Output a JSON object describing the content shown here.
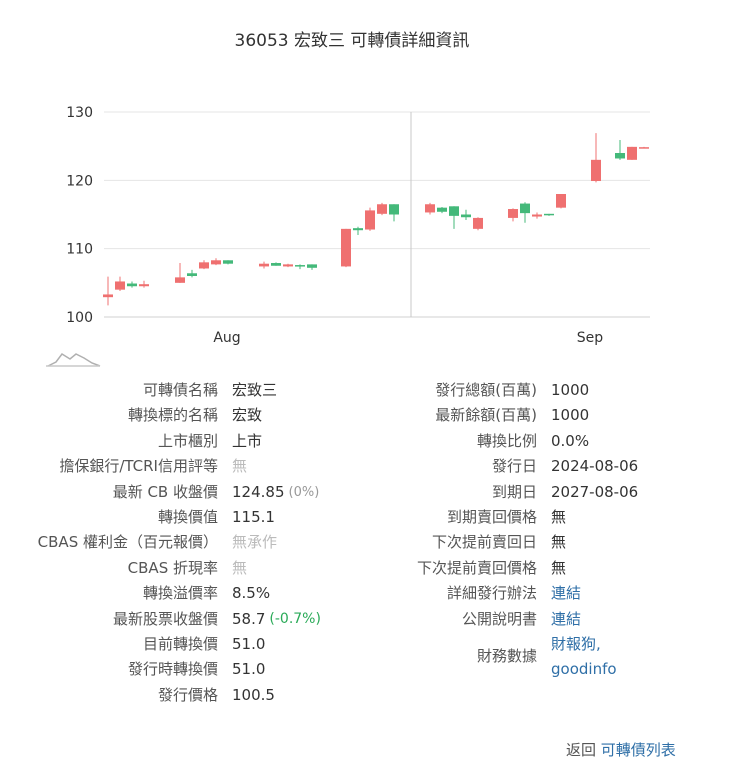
{
  "page": {
    "title": "36053 宏致三 可轉債詳細資訊"
  },
  "chart_data": {
    "type": "candlestick",
    "x_ticks": [
      "Aug",
      "Sep"
    ],
    "y_ticks": [
      100,
      110,
      120,
      130
    ],
    "ylim": [
      99,
      131
    ],
    "colors": {
      "up": "#ef7070",
      "down": "#44b97a",
      "grid": "#e4e4e4",
      "crosshair": "#c8c8c8"
    },
    "candles": [
      {
        "o": 102.9,
        "c": 103.3,
        "h": 105.9,
        "l": 101.7
      },
      {
        "o": 104.0,
        "c": 105.2,
        "h": 105.9,
        "l": 103.8
      },
      {
        "o": 104.9,
        "c": 104.5,
        "h": 105.2,
        "l": 104.3
      },
      {
        "o": 104.5,
        "c": 104.8,
        "h": 105.3,
        "l": 104.3
      },
      {
        "o": 105.0,
        "c": 105.8,
        "h": 107.9,
        "l": 105.0
      },
      {
        "o": 106.4,
        "c": 106.0,
        "h": 106.9,
        "l": 105.8
      },
      {
        "o": 107.1,
        "c": 108.0,
        "h": 108.3,
        "l": 107.0
      },
      {
        "o": 107.7,
        "c": 108.3,
        "h": 108.6,
        "l": 107.6
      },
      {
        "o": 108.3,
        "c": 107.8,
        "h": 108.3,
        "l": 107.7
      },
      {
        "o": 107.4,
        "c": 107.8,
        "h": 108.1,
        "l": 107.1
      },
      {
        "o": 107.9,
        "c": 107.5,
        "h": 108.0,
        "l": 107.5
      },
      {
        "o": 107.4,
        "c": 107.7,
        "h": 107.8,
        "l": 107.3
      },
      {
        "o": 107.6,
        "c": 107.4,
        "h": 107.7,
        "l": 107.0
      },
      {
        "o": 107.7,
        "c": 107.2,
        "h": 107.7,
        "l": 106.9
      },
      {
        "o": 107.4,
        "c": 112.9,
        "h": 112.9,
        "l": 107.3
      },
      {
        "o": 113.0,
        "c": 112.7,
        "h": 113.2,
        "l": 112.0
      },
      {
        "o": 112.8,
        "c": 115.6,
        "h": 116.0,
        "l": 112.6
      },
      {
        "o": 115.1,
        "c": 116.5,
        "h": 116.7,
        "l": 114.9
      },
      {
        "o": 116.5,
        "c": 115.0,
        "h": 116.5,
        "l": 114.0
      },
      {
        "o": 115.3,
        "c": 116.5,
        "h": 116.7,
        "l": 115.0
      },
      {
        "o": 116.0,
        "c": 115.4,
        "h": 116.1,
        "l": 115.2
      },
      {
        "o": 116.2,
        "c": 114.8,
        "h": 116.2,
        "l": 112.9
      },
      {
        "o": 115.0,
        "c": 114.6,
        "h": 115.7,
        "l": 114.2
      },
      {
        "o": 112.9,
        "c": 114.5,
        "h": 114.6,
        "l": 112.7
      },
      {
        "o": 114.5,
        "c": 115.8,
        "h": 115.9,
        "l": 114.0
      },
      {
        "o": 116.6,
        "c": 115.2,
        "h": 116.8,
        "l": 113.8
      },
      {
        "o": 114.7,
        "c": 115.0,
        "h": 115.3,
        "l": 114.4
      },
      {
        "o": 115.1,
        "c": 114.9,
        "h": 115.1,
        "l": 114.8
      },
      {
        "o": 116.0,
        "c": 118.0,
        "h": 118.0,
        "l": 115.9
      },
      {
        "o": 119.9,
        "c": 123.0,
        "h": 126.9,
        "l": 119.7
      },
      {
        "o": 124.0,
        "c": 123.2,
        "h": 125.9,
        "l": 123.0
      },
      {
        "o": 123.0,
        "c": 124.9,
        "h": 124.9,
        "l": 123.0
      },
      {
        "o": 124.8,
        "c": 124.85,
        "h": 124.9,
        "l": 124.7
      }
    ]
  },
  "left_fields": [
    {
      "label": "可轉債名稱",
      "value": "宏致三"
    },
    {
      "label": "轉換標的名稱",
      "value": "宏致"
    },
    {
      "label": "上市櫃別",
      "value": "上市"
    },
    {
      "label": "擔保銀行/TCRI信用評等",
      "value": "無",
      "muted": true
    },
    {
      "label": "最新 CB 收盤價",
      "value": "124.85",
      "change": "(0%)",
      "change_type": "up"
    },
    {
      "label": "轉換價值",
      "value": "115.1"
    },
    {
      "label": "CBAS 權利金（百元報價）",
      "value": "無承作",
      "muted": true
    },
    {
      "label": "CBAS 折現率",
      "value": "無",
      "muted": true
    },
    {
      "label": "轉換溢價率",
      "value": "8.5%"
    },
    {
      "label": "最新股票收盤價",
      "value": "58.7",
      "change": "(-0.7%)",
      "change_type": "down"
    },
    {
      "label": "目前轉換價",
      "value": "51.0"
    },
    {
      "label": "發行時轉換價",
      "value": "51.0"
    },
    {
      "label": "發行價格",
      "value": "100.5"
    }
  ],
  "right_fields": [
    {
      "label": "發行總額(百萬)",
      "value": "1000"
    },
    {
      "label": "最新餘額(百萬)",
      "value": "1000"
    },
    {
      "label": "轉換比例",
      "value": "0.0%"
    },
    {
      "label": "發行日",
      "value": "2024-08-06"
    },
    {
      "label": "到期日",
      "value": "2027-08-06"
    },
    {
      "label": "到期賣回價格",
      "value": "無"
    },
    {
      "label": "下次提前賣回日",
      "value": "無"
    },
    {
      "label": "下次提前賣回價格",
      "value": "無"
    },
    {
      "label": "詳細發行辦法",
      "value": "連結",
      "link": true
    },
    {
      "label": "公開說明書",
      "value": "連結",
      "link": true
    }
  ],
  "finance": {
    "label": "財務數據",
    "links": [
      "財報狗,",
      "goodinfo"
    ]
  },
  "footer": {
    "back": "返回",
    "link": "可轉債列表"
  }
}
